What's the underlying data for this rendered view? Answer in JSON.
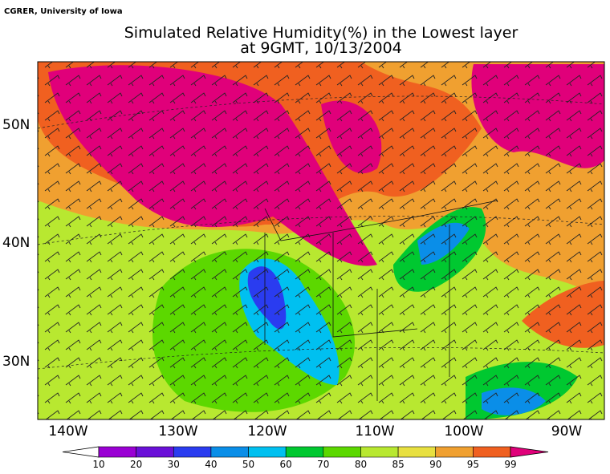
{
  "credit": "CGRER, University of Iowa",
  "title": {
    "line1": "Simulated Relative Humidity(%) in the Lowest layer",
    "line2": "at 9GMT, 10/13/2004"
  },
  "axes": {
    "longitudes": [
      "140W",
      "130W",
      "120W",
      "110W",
      "100W",
      "90W"
    ],
    "latitudes": [
      "50N",
      "40N",
      "30N"
    ]
  },
  "legend": {
    "levels": [
      10,
      20,
      30,
      40,
      50,
      60,
      70,
      80,
      85,
      90,
      95,
      99
    ],
    "colors": [
      "#ffffff",
      "#9a00d4",
      "#6a10d8",
      "#2a3cf0",
      "#0a8ee8",
      "#00c0f0",
      "#00c830",
      "#5cd800",
      "#b8e830",
      "#e8e040",
      "#f0a030",
      "#f06020",
      "#f00000",
      "#e0007a"
    ]
  }
}
